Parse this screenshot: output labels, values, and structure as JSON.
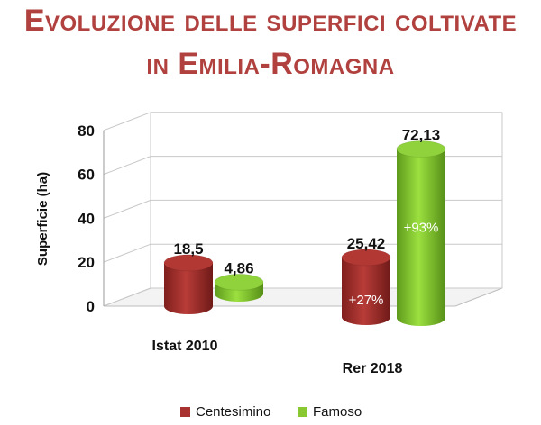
{
  "title_line1": "Evoluzione delle superfici coltivate",
  "title_line2": "in Emilia-Romagna",
  "chart_data": {
    "type": "bar",
    "title": "Evoluzione delle superfici coltivate in Emilia-Romagna",
    "categories": [
      "Istat 2010",
      "Rer 2018"
    ],
    "ylabel": "Superficie (ha)",
    "ylim": [
      0,
      80
    ],
    "yticks": [
      "0",
      "20",
      "40",
      "60",
      "80"
    ],
    "grid": true,
    "legend": "bottom",
    "series": [
      {
        "name": "Centesimino",
        "color": "#a7322f",
        "values": [
          18.5,
          25.42
        ],
        "labels": [
          "18,5",
          "25,42"
        ],
        "inner_labels": [
          "",
          "+27%"
        ]
      },
      {
        "name": "Famoso",
        "color": "#8ac832",
        "values": [
          4.86,
          72.13
        ],
        "labels": [
          "4,86",
          "72,13"
        ],
        "inner_labels": [
          "",
          "+93%"
        ]
      }
    ]
  }
}
